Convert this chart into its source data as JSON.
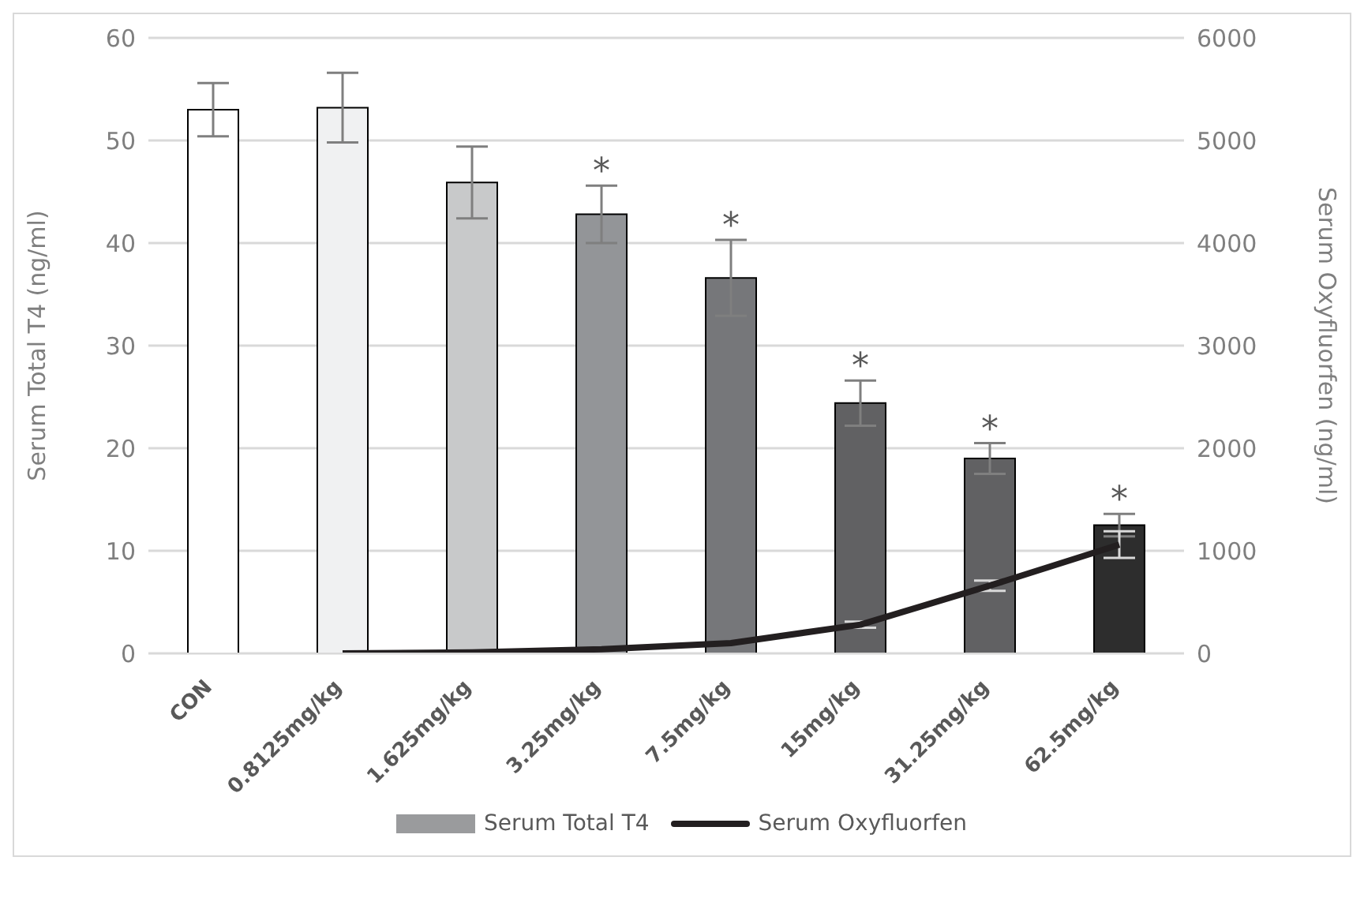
{
  "chart_data": {
    "type": "bar",
    "ylabel": "Serum Total T4 (ng/ml)",
    "y2label": "Serum Oxyfluorfen (ng/ml)",
    "categories": [
      "CON",
      "0.8125mg/kg",
      "1.625mg/kg",
      "3.25mg/kg",
      "7.5mg/kg",
      "15mg/kg",
      "31.25mg/kg",
      "62.5mg/kg"
    ],
    "series": [
      {
        "name": "Serum Total T4",
        "color": "#9a9b9d",
        "colors": [
          "#ffffff",
          "#f0f1f2",
          "#c8c9ca",
          "#939598",
          "#76777a",
          "#616163",
          "#616163",
          "#2d2d2d"
        ],
        "values": [
          53.0,
          53.2,
          45.9,
          42.8,
          36.6,
          24.4,
          19.0,
          12.5
        ],
        "errors": [
          2.6,
          3.4,
          3.5,
          2.8,
          3.7,
          2.2,
          1.5,
          1.1
        ]
      },
      {
        "name": "Serum Oxyfluorfen",
        "type": "line",
        "axis": "y2",
        "color": "#231f20",
        "values": [
          null,
          0,
          10,
          40,
          100,
          280,
          660,
          1060
        ],
        "errors": [
          null,
          null,
          null,
          null,
          null,
          30,
          50,
          130
        ]
      }
    ],
    "ylim": [
      0,
      60
    ],
    "yticks": [
      0,
      10,
      20,
      30,
      40,
      50,
      60
    ],
    "y2lim": [
      0,
      6000
    ],
    "y2ticks": [
      0,
      1000,
      2000,
      3000,
      4000,
      5000,
      6000
    ],
    "grid": "y",
    "legend": "bottom",
    "marker": "none",
    "annotations": [
      {
        "text": "*",
        "x": "3.25mg/kg",
        "y": 42.8
      },
      {
        "text": "*",
        "x": "7.5mg/kg",
        "y": 36.6
      },
      {
        "text": "*",
        "x": "15mg/kg",
        "y": 24.4
      },
      {
        "text": "*",
        "x": "31.25mg/kg",
        "y": 19.0
      },
      {
        "text": "*",
        "x": "62.5mg/kg",
        "y": 12.5
      }
    ]
  }
}
